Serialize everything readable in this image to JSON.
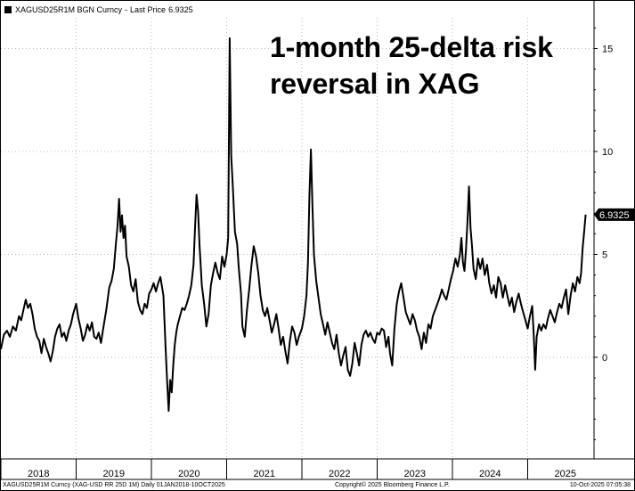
{
  "legend": {
    "ticker": "XAGUSD25R1M BGN Curncy",
    "separator": "-",
    "last_price_label": "Last Price",
    "last_price_value": "6.9325"
  },
  "headline": {
    "line1": "1-month 25-delta risk",
    "line2": "reversal in XAG"
  },
  "footer": {
    "description": "XAGUSD25R1M Curncy (XAG-USD RR 25D 1M) Daily 01JAN2018-10OCT2025",
    "copyright": "Copyright© 2025 Bloomberg Finance L.P.",
    "timestamp": "10-Oct-2025 07:05:38"
  },
  "colors": {
    "line": "#000000",
    "background": "#ffffff",
    "label_bg": "#000000",
    "label_text": "#ffffff"
  },
  "chart_data": {
    "type": "line",
    "title": "1-month 25-delta risk reversal in XAG",
    "xlabel": "",
    "ylabel": "",
    "x_start": "2018-01-01",
    "x_end": "2025-10-10",
    "ylim": [
      -4.8,
      17.0
    ],
    "yticks": [
      0,
      5,
      10,
      15
    ],
    "ytick_labels": [
      "0",
      "5",
      "10",
      "15"
    ],
    "xtick_labels": [
      "2018",
      "2019",
      "2020",
      "2021",
      "2022",
      "2023",
      "2024",
      "2025"
    ],
    "last_value": 6.9325,
    "last_value_label": "6.9325",
    "series": [
      {
        "name": "XAGUSD25R1M BGN Curncy",
        "points": [
          [
            2018.0,
            0.4
          ],
          [
            2018.04,
            1.1
          ],
          [
            2018.08,
            1.3
          ],
          [
            2018.12,
            1.0
          ],
          [
            2018.16,
            1.5
          ],
          [
            2018.2,
            1.3
          ],
          [
            2018.24,
            2.0
          ],
          [
            2018.27,
            1.8
          ],
          [
            2018.3,
            2.3
          ],
          [
            2018.33,
            2.8
          ],
          [
            2018.36,
            2.4
          ],
          [
            2018.39,
            2.6
          ],
          [
            2018.42,
            2.1
          ],
          [
            2018.45,
            1.4
          ],
          [
            2018.48,
            1.0
          ],
          [
            2018.51,
            0.8
          ],
          [
            2018.54,
            0.2
          ],
          [
            2018.57,
            0.9
          ],
          [
            2018.6,
            0.5
          ],
          [
            2018.63,
            0.2
          ],
          [
            2018.66,
            -0.2
          ],
          [
            2018.69,
            0.3
          ],
          [
            2018.72,
            1.0
          ],
          [
            2018.75,
            1.4
          ],
          [
            2018.78,
            1.6
          ],
          [
            2018.81,
            1.0
          ],
          [
            2018.84,
            1.2
          ],
          [
            2018.87,
            0.8
          ],
          [
            2018.9,
            1.3
          ],
          [
            2018.93,
            1.6
          ],
          [
            2018.96,
            2.1
          ],
          [
            2019.0,
            2.6
          ],
          [
            2019.03,
            1.9
          ],
          [
            2019.06,
            1.4
          ],
          [
            2019.09,
            0.8
          ],
          [
            2019.12,
            1.1
          ],
          [
            2019.15,
            1.6
          ],
          [
            2019.18,
            1.3
          ],
          [
            2019.21,
            1.7
          ],
          [
            2019.24,
            1.0
          ],
          [
            2019.27,
            0.9
          ],
          [
            2019.3,
            1.2
          ],
          [
            2019.33,
            0.7
          ],
          [
            2019.36,
            1.4
          ],
          [
            2019.4,
            2.3
          ],
          [
            2019.44,
            3.4
          ],
          [
            2019.47,
            3.7
          ],
          [
            2019.5,
            4.3
          ],
          [
            2019.53,
            5.6
          ],
          [
            2019.55,
            6.4
          ],
          [
            2019.57,
            7.7
          ],
          [
            2019.59,
            6.1
          ],
          [
            2019.61,
            6.9
          ],
          [
            2019.63,
            5.8
          ],
          [
            2019.65,
            6.4
          ],
          [
            2019.67,
            4.9
          ],
          [
            2019.7,
            4.4
          ],
          [
            2019.73,
            3.5
          ],
          [
            2019.76,
            3.2
          ],
          [
            2019.79,
            3.8
          ],
          [
            2019.82,
            2.7
          ],
          [
            2019.85,
            2.3
          ],
          [
            2019.88,
            2.1
          ],
          [
            2019.91,
            2.6
          ],
          [
            2019.94,
            2.4
          ],
          [
            2019.97,
            3.1
          ],
          [
            2020.0,
            3.3
          ],
          [
            2020.03,
            3.6
          ],
          [
            2020.06,
            3.2
          ],
          [
            2020.09,
            3.6
          ],
          [
            2020.12,
            3.9
          ],
          [
            2020.16,
            3.0
          ],
          [
            2020.19,
            0.3
          ],
          [
            2020.21,
            -1.2
          ],
          [
            2020.23,
            -2.6
          ],
          [
            2020.25,
            -1.1
          ],
          [
            2020.27,
            -1.7
          ],
          [
            2020.29,
            -0.4
          ],
          [
            2020.31,
            0.6
          ],
          [
            2020.33,
            1.2
          ],
          [
            2020.35,
            1.6
          ],
          [
            2020.38,
            2.0
          ],
          [
            2020.41,
            2.4
          ],
          [
            2020.44,
            2.3
          ],
          [
            2020.47,
            2.6
          ],
          [
            2020.5,
            3.0
          ],
          [
            2020.53,
            3.5
          ],
          [
            2020.56,
            4.5
          ],
          [
            2020.58,
            6.3
          ],
          [
            2020.6,
            7.9
          ],
          [
            2020.62,
            7.1
          ],
          [
            2020.64,
            5.4
          ],
          [
            2020.67,
            3.5
          ],
          [
            2020.7,
            2.6
          ],
          [
            2020.73,
            1.5
          ],
          [
            2020.76,
            2.1
          ],
          [
            2020.79,
            3.5
          ],
          [
            2020.82,
            4.1
          ],
          [
            2020.85,
            4.6
          ],
          [
            2020.88,
            4.1
          ],
          [
            2020.91,
            3.8
          ],
          [
            2020.94,
            4.9
          ],
          [
            2020.97,
            4.4
          ],
          [
            2021.0,
            5.0
          ],
          [
            2021.02,
            5.8
          ],
          [
            2021.04,
            15.5
          ],
          [
            2021.06,
            9.8
          ],
          [
            2021.08,
            8.4
          ],
          [
            2021.11,
            6.1
          ],
          [
            2021.14,
            5.5
          ],
          [
            2021.16,
            4.4
          ],
          [
            2021.19,
            3.1
          ],
          [
            2021.21,
            1.5
          ],
          [
            2021.24,
            1.0
          ],
          [
            2021.27,
            2.3
          ],
          [
            2021.3,
            3.3
          ],
          [
            2021.33,
            4.5
          ],
          [
            2021.36,
            5.4
          ],
          [
            2021.39,
            4.9
          ],
          [
            2021.42,
            4.1
          ],
          [
            2021.45,
            3.0
          ],
          [
            2021.48,
            2.3
          ],
          [
            2021.51,
            2.0
          ],
          [
            2021.54,
            2.4
          ],
          [
            2021.57,
            1.8
          ],
          [
            2021.6,
            1.2
          ],
          [
            2021.63,
            1.6
          ],
          [
            2021.66,
            2.1
          ],
          [
            2021.69,
            1.4
          ],
          [
            2021.72,
            0.6
          ],
          [
            2021.75,
            1.0
          ],
          [
            2021.78,
            0.3
          ],
          [
            2021.81,
            -0.3
          ],
          [
            2021.84,
            0.8
          ],
          [
            2021.87,
            1.5
          ],
          [
            2021.9,
            1.2
          ],
          [
            2021.93,
            0.6
          ],
          [
            2021.96,
            1.0
          ],
          [
            2022.0,
            1.4
          ],
          [
            2022.03,
            2.0
          ],
          [
            2022.06,
            3.0
          ],
          [
            2022.08,
            4.6
          ],
          [
            2022.1,
            7.8
          ],
          [
            2022.12,
            10.1
          ],
          [
            2022.14,
            7.4
          ],
          [
            2022.16,
            5.0
          ],
          [
            2022.19,
            3.7
          ],
          [
            2022.22,
            2.9
          ],
          [
            2022.25,
            2.1
          ],
          [
            2022.28,
            1.6
          ],
          [
            2022.31,
            1.1
          ],
          [
            2022.34,
            1.7
          ],
          [
            2022.37,
            1.2
          ],
          [
            2022.4,
            0.7
          ],
          [
            2022.43,
            0.4
          ],
          [
            2022.46,
            1.1
          ],
          [
            2022.49,
            0.2
          ],
          [
            2022.52,
            -0.4
          ],
          [
            2022.55,
            0.1
          ],
          [
            2022.58,
            0.5
          ],
          [
            2022.61,
            -0.6
          ],
          [
            2022.64,
            -0.9
          ],
          [
            2022.67,
            -0.3
          ],
          [
            2022.7,
            0.7
          ],
          [
            2022.73,
            0.2
          ],
          [
            2022.76,
            -0.4
          ],
          [
            2022.79,
            0.6
          ],
          [
            2022.82,
            1.1
          ],
          [
            2022.85,
            1.3
          ],
          [
            2022.88,
            1.0
          ],
          [
            2022.91,
            1.2
          ],
          [
            2022.94,
            0.9
          ],
          [
            2022.97,
            0.7
          ],
          [
            2023.0,
            1.2
          ],
          [
            2023.03,
            1.1
          ],
          [
            2023.06,
            1.4
          ],
          [
            2023.09,
            1.3
          ],
          [
            2023.12,
            0.5
          ],
          [
            2023.15,
            1.0
          ],
          [
            2023.17,
            0.2
          ],
          [
            2023.2,
            -0.4
          ],
          [
            2023.23,
            1.4
          ],
          [
            2023.26,
            2.6
          ],
          [
            2023.29,
            3.2
          ],
          [
            2023.32,
            3.6
          ],
          [
            2023.35,
            2.9
          ],
          [
            2023.38,
            2.2
          ],
          [
            2023.41,
            1.9
          ],
          [
            2023.44,
            1.6
          ],
          [
            2023.47,
            2.1
          ],
          [
            2023.5,
            1.8
          ],
          [
            2023.53,
            1.3
          ],
          [
            2023.56,
            1.0
          ],
          [
            2023.59,
            0.4
          ],
          [
            2023.62,
            1.2
          ],
          [
            2023.65,
            0.7
          ],
          [
            2023.68,
            1.6
          ],
          [
            2023.71,
            1.4
          ],
          [
            2023.74,
            2.0
          ],
          [
            2023.77,
            2.3
          ],
          [
            2023.8,
            2.6
          ],
          [
            2023.83,
            2.9
          ],
          [
            2023.86,
            3.3
          ],
          [
            2023.89,
            3.0
          ],
          [
            2023.92,
            2.8
          ],
          [
            2023.95,
            3.3
          ],
          [
            2023.98,
            3.8
          ],
          [
            2024.01,
            4.2
          ],
          [
            2024.04,
            4.8
          ],
          [
            2024.07,
            4.4
          ],
          [
            2024.1,
            5.0
          ],
          [
            2024.12,
            5.8
          ],
          [
            2024.14,
            4.6
          ],
          [
            2024.16,
            4.2
          ],
          [
            2024.18,
            5.2
          ],
          [
            2024.2,
            6.6
          ],
          [
            2024.22,
            8.3
          ],
          [
            2024.24,
            6.3
          ],
          [
            2024.26,
            5.4
          ],
          [
            2024.28,
            4.3
          ],
          [
            2024.31,
            3.8
          ],
          [
            2024.34,
            4.8
          ],
          [
            2024.37,
            4.3
          ],
          [
            2024.4,
            4.8
          ],
          [
            2024.43,
            4.0
          ],
          [
            2024.46,
            4.5
          ],
          [
            2024.49,
            3.6
          ],
          [
            2024.52,
            3.1
          ],
          [
            2024.55,
            3.5
          ],
          [
            2024.58,
            2.9
          ],
          [
            2024.61,
            3.9
          ],
          [
            2024.64,
            3.6
          ],
          [
            2024.67,
            2.9
          ],
          [
            2024.7,
            3.5
          ],
          [
            2024.73,
            3.0
          ],
          [
            2024.76,
            2.5
          ],
          [
            2024.79,
            2.9
          ],
          [
            2024.82,
            2.2
          ],
          [
            2024.85,
            2.7
          ],
          [
            2024.88,
            3.1
          ],
          [
            2024.91,
            2.6
          ],
          [
            2024.94,
            2.2
          ],
          [
            2024.97,
            1.8
          ],
          [
            2025.0,
            1.4
          ],
          [
            2025.03,
            2.0
          ],
          [
            2025.06,
            2.5
          ],
          [
            2025.08,
            1.1
          ],
          [
            2025.1,
            -0.6
          ],
          [
            2025.12,
            1.0
          ],
          [
            2025.15,
            1.6
          ],
          [
            2025.18,
            1.3
          ],
          [
            2025.21,
            1.6
          ],
          [
            2025.24,
            1.4
          ],
          [
            2025.27,
            1.9
          ],
          [
            2025.3,
            2.3
          ],
          [
            2025.33,
            2.0
          ],
          [
            2025.36,
            1.7
          ],
          [
            2025.39,
            2.2
          ],
          [
            2025.42,
            2.6
          ],
          [
            2025.45,
            2.4
          ],
          [
            2025.48,
            2.9
          ],
          [
            2025.51,
            3.3
          ],
          [
            2025.54,
            2.1
          ],
          [
            2025.57,
            3.0
          ],
          [
            2025.6,
            3.6
          ],
          [
            2025.63,
            3.2
          ],
          [
            2025.66,
            3.9
          ],
          [
            2025.69,
            3.6
          ],
          [
            2025.71,
            4.1
          ],
          [
            2025.73,
            5.3
          ],
          [
            2025.75,
            6.1
          ],
          [
            2025.77,
            6.9325
          ]
        ]
      }
    ]
  }
}
